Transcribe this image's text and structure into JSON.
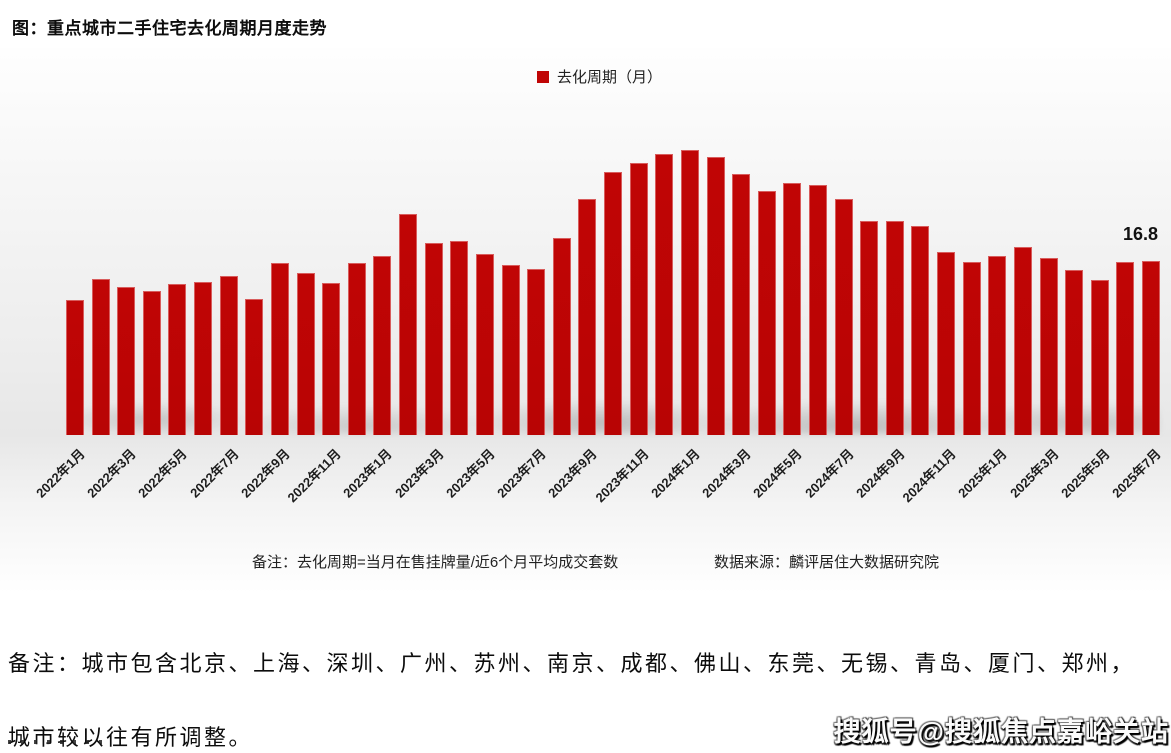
{
  "chart": {
    "title": "图：重点城市二手住宅去化周期月度走势",
    "legend_label": "去化周期（月）",
    "last_value_label": "16.8",
    "note": "备注：去化周期=当月在售挂牌量/近6个月平均成交套数",
    "source": "数据来源：麟评居住大数据研究院",
    "bar_color": "#c00505"
  },
  "chart_data": {
    "type": "bar",
    "title": "图：重点城市二手住宅去化周期月度走势",
    "series_name": "去化周期（月）",
    "xlabel": "",
    "ylabel": "去化周期（月）",
    "ylim": [
      0,
      30
    ],
    "grid": false,
    "legend_position": "top",
    "bar_color": "#c00505",
    "categories": [
      "2022年1月",
      "2022年2月",
      "2022年3月",
      "2022年4月",
      "2022年5月",
      "2022年6月",
      "2022年7月",
      "2022年8月",
      "2022年9月",
      "2022年10月",
      "2022年11月",
      "2022年12月",
      "2023年1月",
      "2023年2月",
      "2023年3月",
      "2023年4月",
      "2023年5月",
      "2023年6月",
      "2023年7月",
      "2023年8月",
      "2023年9月",
      "2023年10月",
      "2023年11月",
      "2023年12月",
      "2024年1月",
      "2024年2月",
      "2024年3月",
      "2024年4月",
      "2024年5月",
      "2024年6月",
      "2024年7月",
      "2024年8月",
      "2024年9月",
      "2024年10月",
      "2024年11月",
      "2024年12月",
      "2025年1月",
      "2025年2月",
      "2025年3月",
      "2025年4月",
      "2025年5月",
      "2025年6月",
      "2025年7月"
    ],
    "values": [
      13.0,
      15.1,
      14.3,
      13.9,
      14.6,
      14.8,
      15.4,
      13.1,
      16.6,
      15.6,
      14.7,
      16.6,
      17.3,
      21.3,
      18.5,
      18.7,
      17.5,
      16.4,
      16.0,
      19.0,
      22.8,
      25.4,
      26.3,
      27.1,
      27.5,
      26.8,
      25.2,
      23.6,
      24.3,
      24.1,
      22.8,
      20.7,
      20.7,
      20.2,
      17.7,
      16.7,
      17.3,
      18.2,
      17.1,
      15.9,
      15.0,
      16.7,
      16.8
    ],
    "tick_labels": [
      "2022年1月",
      "2022年3月",
      "2022年5月",
      "2022年7月",
      "2022年9月",
      "2022年11月",
      "2023年1月",
      "2023年3月",
      "2023年5月",
      "2023年7月",
      "2023年9月",
      "2023年11月",
      "2024年1月",
      "2024年3月",
      "2024年5月",
      "2024年7月",
      "2024年9月",
      "2024年11月",
      "2025年1月",
      "2025年3月",
      "2025年5月",
      "2025年7月"
    ],
    "annotation": {
      "text": "16.8",
      "category": "2025年7月"
    }
  },
  "footer": {
    "line1": "备注：城市包含北京、上海、深圳、广州、苏州、南京、成都、佛山、东莞、无锡、青岛、厦门、郑州，",
    "line2": "城市较以往有所调整。"
  },
  "watermark": {
    "text": "搜狐号@搜狐焦点嘉峪关站"
  }
}
